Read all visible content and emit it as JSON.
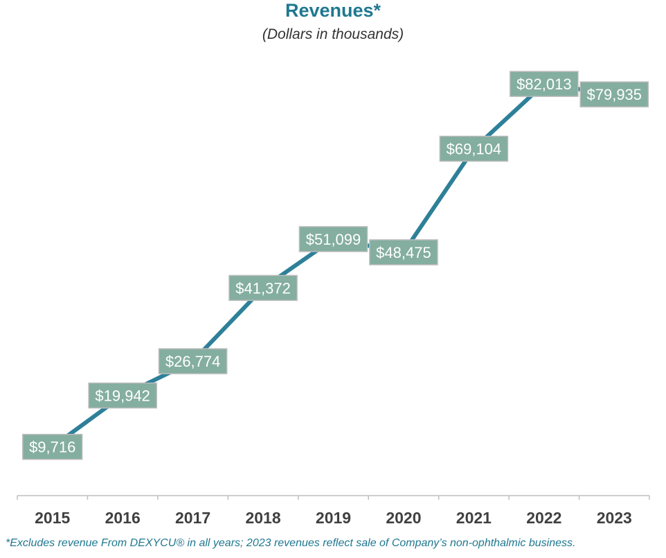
{
  "chart_data": {
    "type": "line",
    "title": "Revenues*",
    "subtitle": "(Dollars in thousands)",
    "categories": [
      "2015",
      "2016",
      "2017",
      "2018",
      "2019",
      "2020",
      "2021",
      "2022",
      "2023"
    ],
    "values": [
      9716,
      19942,
      26774,
      41372,
      51099,
      48475,
      69104,
      82013,
      79935
    ],
    "data_labels": [
      "$9,716",
      "$19,942",
      "$26,774",
      "$41,372",
      "$51,099",
      "$48,475",
      "$69,104",
      "$82,013",
      "$79,935"
    ],
    "ylim": [
      0,
      91000
    ],
    "grid": false,
    "legend": "none",
    "colors": {
      "line": "#2e8099",
      "label_fill": "#84ae9f",
      "label_border": "#bcbcbc",
      "label_text": "#ffffff",
      "title": "#1f7890",
      "axis": "#bfbfbf",
      "tick_text": "#404040"
    },
    "footnote": "*Excludes revenue From DEXYCU® in all years; 2023 revenues reflect sale of Company’s non-ophthalmic business."
  }
}
